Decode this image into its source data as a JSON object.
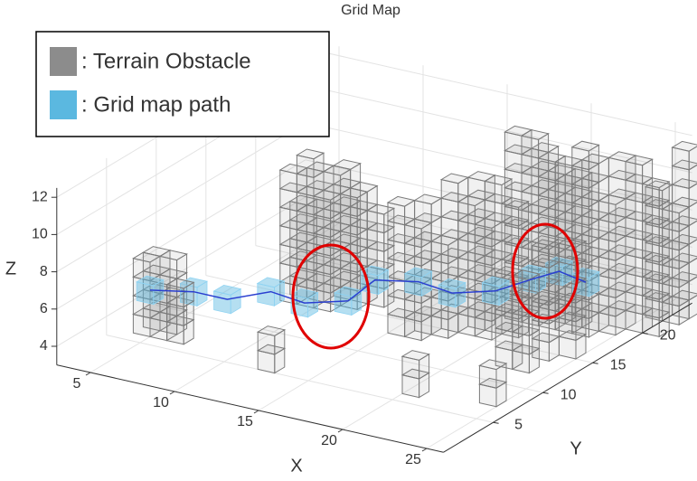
{
  "chart_data": {
    "type": "voxel3d",
    "title": "Grid Map",
    "x_label": "X",
    "y_label": "Y",
    "z_label": "Z",
    "xlim": [
      3,
      26
    ],
    "ylim": [
      0,
      25
    ],
    "zlim": [
      3,
      12.5
    ],
    "xticks": [
      5,
      10,
      15,
      20,
      25
    ],
    "yticks": [
      5,
      10,
      15,
      20
    ],
    "zticks": [
      4,
      6,
      8,
      10,
      12
    ],
    "grid": true,
    "series": [
      {
        "name": ": Terrain Obstacle",
        "color": "#8c8c8c",
        "columns": [
          [
            4,
            6,
            7
          ],
          [
            5,
            6,
            6
          ],
          [
            4,
            7,
            7
          ],
          [
            5,
            7,
            7
          ],
          [
            6,
            6,
            6
          ],
          [
            8,
            14,
            10
          ],
          [
            9,
            14,
            11
          ],
          [
            10,
            14,
            9
          ],
          [
            9,
            15,
            10
          ],
          [
            10,
            15,
            10
          ],
          [
            11,
            15,
            9
          ],
          [
            10,
            16,
            10
          ],
          [
            11,
            16,
            9
          ],
          [
            8,
            15,
            8
          ],
          [
            12,
            16,
            8
          ],
          [
            12,
            5,
            5
          ],
          [
            20,
            6,
            5
          ],
          [
            24,
            7,
            5
          ],
          [
            15,
            13,
            10
          ],
          [
            16,
            13,
            9
          ],
          [
            16,
            14,
            10
          ],
          [
            17,
            14,
            8
          ],
          [
            18,
            15,
            10
          ],
          [
            17,
            15,
            11
          ],
          [
            19,
            15,
            9
          ],
          [
            18,
            16,
            11
          ],
          [
            19,
            16,
            11
          ],
          [
            20,
            16,
            10
          ],
          [
            19,
            18,
            13
          ],
          [
            20,
            18,
            13
          ],
          [
            20,
            19,
            12
          ],
          [
            21,
            18,
            12
          ],
          [
            21,
            19,
            11
          ],
          [
            22,
            18,
            12
          ],
          [
            23,
            18,
            13
          ],
          [
            22,
            19,
            11
          ],
          [
            23,
            19,
            12
          ],
          [
            24,
            19,
            10
          ],
          [
            24,
            20,
            12
          ],
          [
            23,
            14,
            9
          ],
          [
            24,
            15,
            9
          ],
          [
            22,
            12,
            8
          ],
          [
            23,
            12,
            8
          ],
          [
            25,
            20,
            12
          ],
          [
            26,
            20,
            11
          ],
          [
            25,
            22,
            10
          ],
          [
            26,
            22,
            9
          ],
          [
            26,
            23,
            12
          ]
        ]
      },
      {
        "name": ": Grid map path",
        "color": "#5bb8e0",
        "line_color": "#2a3fd0",
        "x": [
          5,
          7,
          9,
          11,
          13,
          15,
          16,
          18,
          20,
          22,
          23,
          24,
          25
        ],
        "y": [
          6,
          7,
          7,
          8,
          8,
          9,
          10,
          11,
          11,
          12,
          14,
          15,
          16
        ],
        "z": [
          5.5,
          5.5,
          5.5,
          6,
          5.8,
          6,
          7,
          7,
          6.8,
          7,
          7.2,
          7.5,
          6.8
        ]
      }
    ]
  }
}
